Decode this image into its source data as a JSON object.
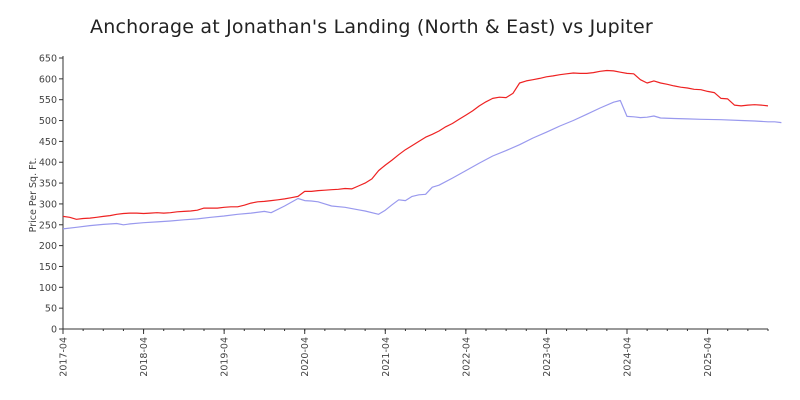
{
  "chart_data": {
    "type": "line",
    "title": "Anchorage at Jonathan's Landing (North & East) vs Jupiter",
    "xlabel": "",
    "ylabel": "Price Per Sq. Ft.",
    "ylim": [
      0,
      650
    ],
    "yticks": [
      0,
      50,
      100,
      150,
      200,
      250,
      300,
      350,
      400,
      450,
      500,
      550,
      600,
      650
    ],
    "xlim": [
      "2017-04",
      "2026-01"
    ],
    "xticks": [
      "2017-04",
      "2018-04",
      "2019-04",
      "2020-04",
      "2021-04",
      "2022-04",
      "2023-04",
      "2024-04",
      "2025-04"
    ],
    "grid": false,
    "legend": "none",
    "series": [
      {
        "color": "#ee2222",
        "points": [
          [
            "2017-04",
            270
          ],
          [
            "2017-05",
            268
          ],
          [
            "2017-06",
            263
          ],
          [
            "2017-07",
            265
          ],
          [
            "2017-08",
            266
          ],
          [
            "2017-09",
            268
          ],
          [
            "2017-10",
            270
          ],
          [
            "2017-11",
            272
          ],
          [
            "2017-12",
            275
          ],
          [
            "2018-01",
            277
          ],
          [
            "2018-02",
            278
          ],
          [
            "2018-03",
            278
          ],
          [
            "2018-04",
            277
          ],
          [
            "2018-05",
            278
          ],
          [
            "2018-06",
            279
          ],
          [
            "2018-07",
            278
          ],
          [
            "2018-08",
            279
          ],
          [
            "2018-09",
            281
          ],
          [
            "2018-10",
            282
          ],
          [
            "2018-11",
            283
          ],
          [
            "2018-12",
            285
          ],
          [
            "2019-01",
            290
          ],
          [
            "2019-02",
            290
          ],
          [
            "2019-03",
            290
          ],
          [
            "2019-04",
            292
          ],
          [
            "2019-05",
            293
          ],
          [
            "2019-06",
            293
          ],
          [
            "2019-07",
            297
          ],
          [
            "2019-08",
            302
          ],
          [
            "2019-09",
            305
          ],
          [
            "2019-10",
            306
          ],
          [
            "2019-11",
            308
          ],
          [
            "2019-12",
            310
          ],
          [
            "2020-01",
            312
          ],
          [
            "2020-02",
            315
          ],
          [
            "2020-03",
            318
          ],
          [
            "2020-04",
            330
          ],
          [
            "2020-05",
            330
          ],
          [
            "2020-06",
            332
          ],
          [
            "2020-07",
            333
          ],
          [
            "2020-08",
            334
          ],
          [
            "2020-09",
            335
          ],
          [
            "2020-10",
            337
          ],
          [
            "2020-11",
            336
          ],
          [
            "2020-12",
            343
          ],
          [
            "2021-01",
            350
          ],
          [
            "2021-02",
            360
          ],
          [
            "2021-03",
            380
          ],
          [
            "2021-04",
            393
          ],
          [
            "2021-05",
            405
          ],
          [
            "2021-06",
            418
          ],
          [
            "2021-07",
            430
          ],
          [
            "2021-08",
            440
          ],
          [
            "2021-09",
            450
          ],
          [
            "2021-10",
            460
          ],
          [
            "2021-11",
            467
          ],
          [
            "2021-12",
            475
          ],
          [
            "2022-01",
            485
          ],
          [
            "2022-02",
            493
          ],
          [
            "2022-03",
            503
          ],
          [
            "2022-04",
            513
          ],
          [
            "2022-05",
            523
          ],
          [
            "2022-06",
            535
          ],
          [
            "2022-07",
            545
          ],
          [
            "2022-08",
            553
          ],
          [
            "2022-09",
            556
          ],
          [
            "2022-10",
            555
          ],
          [
            "2022-11",
            565
          ],
          [
            "2022-12",
            590
          ],
          [
            "2023-01",
            595
          ],
          [
            "2023-02",
            598
          ],
          [
            "2023-03",
            601
          ],
          [
            "2023-04",
            605
          ],
          [
            "2023-05",
            607
          ],
          [
            "2023-06",
            610
          ],
          [
            "2023-07",
            612
          ],
          [
            "2023-08",
            614
          ],
          [
            "2023-09",
            613
          ],
          [
            "2023-10",
            613
          ],
          [
            "2023-11",
            615
          ],
          [
            "2023-12",
            618
          ],
          [
            "2024-01",
            620
          ],
          [
            "2024-02",
            619
          ],
          [
            "2024-03",
            616
          ],
          [
            "2024-04",
            613
          ],
          [
            "2024-05",
            612
          ],
          [
            "2024-06",
            598
          ],
          [
            "2024-07",
            590
          ],
          [
            "2024-08",
            595
          ],
          [
            "2024-09",
            590
          ],
          [
            "2024-10",
            587
          ],
          [
            "2024-11",
            583
          ],
          [
            "2024-12",
            580
          ],
          [
            "2025-01",
            578
          ],
          [
            "2025-02",
            575
          ],
          [
            "2025-03",
            574
          ],
          [
            "2025-04",
            570
          ],
          [
            "2025-05",
            567
          ],
          [
            "2025-06",
            553
          ],
          [
            "2025-07",
            552
          ],
          [
            "2025-08",
            537
          ],
          [
            "2025-09",
            535
          ],
          [
            "2025-10",
            537
          ],
          [
            "2025-11",
            538
          ],
          [
            "2025-12",
            537
          ],
          [
            "2026-01",
            535
          ]
        ]
      },
      {
        "color": "#9999ee",
        "points": [
          [
            "2017-04",
            240
          ],
          [
            "2017-06",
            244
          ],
          [
            "2017-08",
            248
          ],
          [
            "2017-10",
            251
          ],
          [
            "2017-12",
            253
          ],
          [
            "2018-01",
            250
          ],
          [
            "2018-02",
            252
          ],
          [
            "2018-04",
            255
          ],
          [
            "2018-06",
            257
          ],
          [
            "2018-08",
            259
          ],
          [
            "2018-10",
            262
          ],
          [
            "2018-12",
            264
          ],
          [
            "2019-02",
            268
          ],
          [
            "2019-04",
            271
          ],
          [
            "2019-06",
            275
          ],
          [
            "2019-08",
            278
          ],
          [
            "2019-10",
            282
          ],
          [
            "2019-11",
            279
          ],
          [
            "2020-01",
            295
          ],
          [
            "2020-03",
            313
          ],
          [
            "2020-04",
            308
          ],
          [
            "2020-05",
            307
          ],
          [
            "2020-06",
            305
          ],
          [
            "2020-07",
            300
          ],
          [
            "2020-08",
            295
          ],
          [
            "2020-10",
            292
          ],
          [
            "2020-12",
            286
          ],
          [
            "2021-01",
            283
          ],
          [
            "2021-03",
            275
          ],
          [
            "2021-04",
            285
          ],
          [
            "2021-05",
            298
          ],
          [
            "2021-06",
            310
          ],
          [
            "2021-07",
            308
          ],
          [
            "2021-08",
            318
          ],
          [
            "2021-09",
            322
          ],
          [
            "2021-10",
            323
          ],
          [
            "2021-11",
            340
          ],
          [
            "2021-12",
            345
          ],
          [
            "2022-02",
            362
          ],
          [
            "2022-04",
            380
          ],
          [
            "2022-06",
            398
          ],
          [
            "2022-08",
            415
          ],
          [
            "2022-10",
            428
          ],
          [
            "2022-12",
            442
          ],
          [
            "2023-02",
            458
          ],
          [
            "2023-04",
            472
          ],
          [
            "2023-06",
            487
          ],
          [
            "2023-08",
            500
          ],
          [
            "2023-10",
            515
          ],
          [
            "2023-12",
            530
          ],
          [
            "2024-02",
            544
          ],
          [
            "2024-03",
            548
          ],
          [
            "2024-04",
            510
          ],
          [
            "2024-05",
            509
          ],
          [
            "2024-06",
            507
          ],
          [
            "2024-07",
            508
          ],
          [
            "2024-08",
            511
          ],
          [
            "2024-09",
            506
          ],
          [
            "2024-11",
            505
          ],
          [
            "2025-01",
            504
          ],
          [
            "2025-03",
            503
          ],
          [
            "2025-06",
            502
          ],
          [
            "2025-09",
            500
          ],
          [
            "2025-11",
            499
          ],
          [
            "2026-01",
            497
          ],
          [
            "2026-02",
            497
          ],
          [
            "2026-03",
            495
          ]
        ]
      }
    ]
  }
}
